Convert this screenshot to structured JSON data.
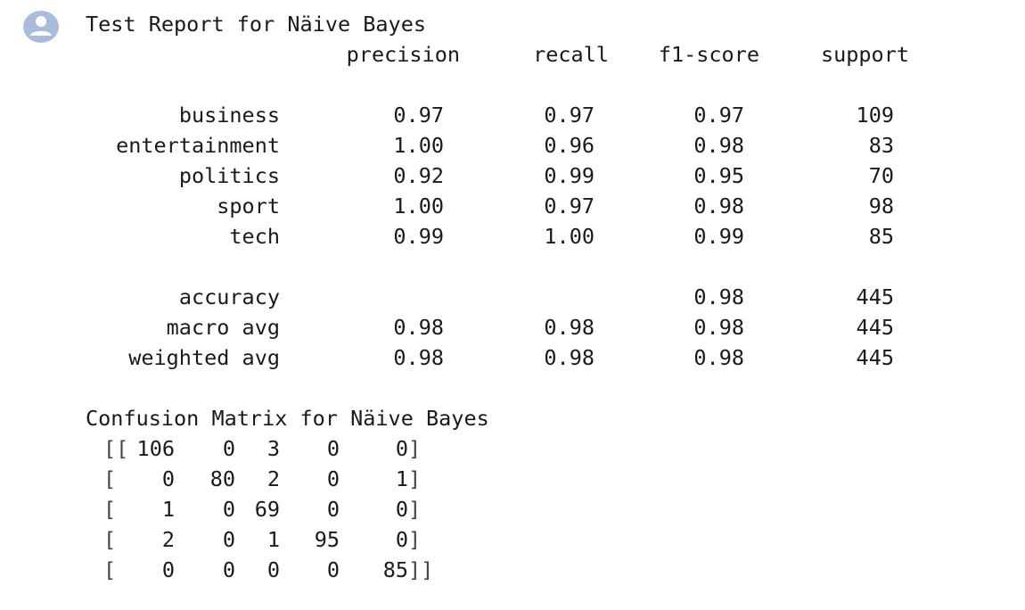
{
  "report": {
    "title": "Test Report for Näive Bayes",
    "headers": [
      "precision",
      "recall",
      "f1-score",
      "support"
    ],
    "rows": [
      {
        "label": "business",
        "precision": "0.97",
        "recall": "0.97",
        "f1": "0.97",
        "support": "109"
      },
      {
        "label": "entertainment",
        "precision": "1.00",
        "recall": "0.96",
        "f1": "0.98",
        "support": "83"
      },
      {
        "label": "politics",
        "precision": "0.92",
        "recall": "0.99",
        "f1": "0.95",
        "support": "70"
      },
      {
        "label": "sport",
        "precision": "1.00",
        "recall": "0.97",
        "f1": "0.98",
        "support": "98"
      },
      {
        "label": "tech",
        "precision": "0.99",
        "recall": "1.00",
        "f1": "0.99",
        "support": "85"
      }
    ],
    "summary": [
      {
        "label": "accuracy",
        "precision": "",
        "recall": "",
        "f1": "0.98",
        "support": "445"
      },
      {
        "label": "macro avg",
        "precision": "0.98",
        "recall": "0.98",
        "f1": "0.98",
        "support": "445"
      },
      {
        "label": "weighted avg",
        "precision": "0.98",
        "recall": "0.98",
        "f1": "0.98",
        "support": "445"
      }
    ]
  },
  "confusion": {
    "title": "Confusion Matrix for Näive Bayes",
    "matrix": [
      [
        "106",
        "0",
        "3",
        "0",
        "0"
      ],
      [
        "0",
        "80",
        "2",
        "0",
        "1"
      ],
      [
        "1",
        "0",
        "69",
        "0",
        "0"
      ],
      [
        "2",
        "0",
        "1",
        "95",
        "0"
      ],
      [
        "0",
        "0",
        "0",
        "0",
        "85"
      ]
    ],
    "brackets": {
      "first_open": "[[",
      "row_open": "[",
      "row_close": "]",
      "last_close": "]]"
    }
  }
}
